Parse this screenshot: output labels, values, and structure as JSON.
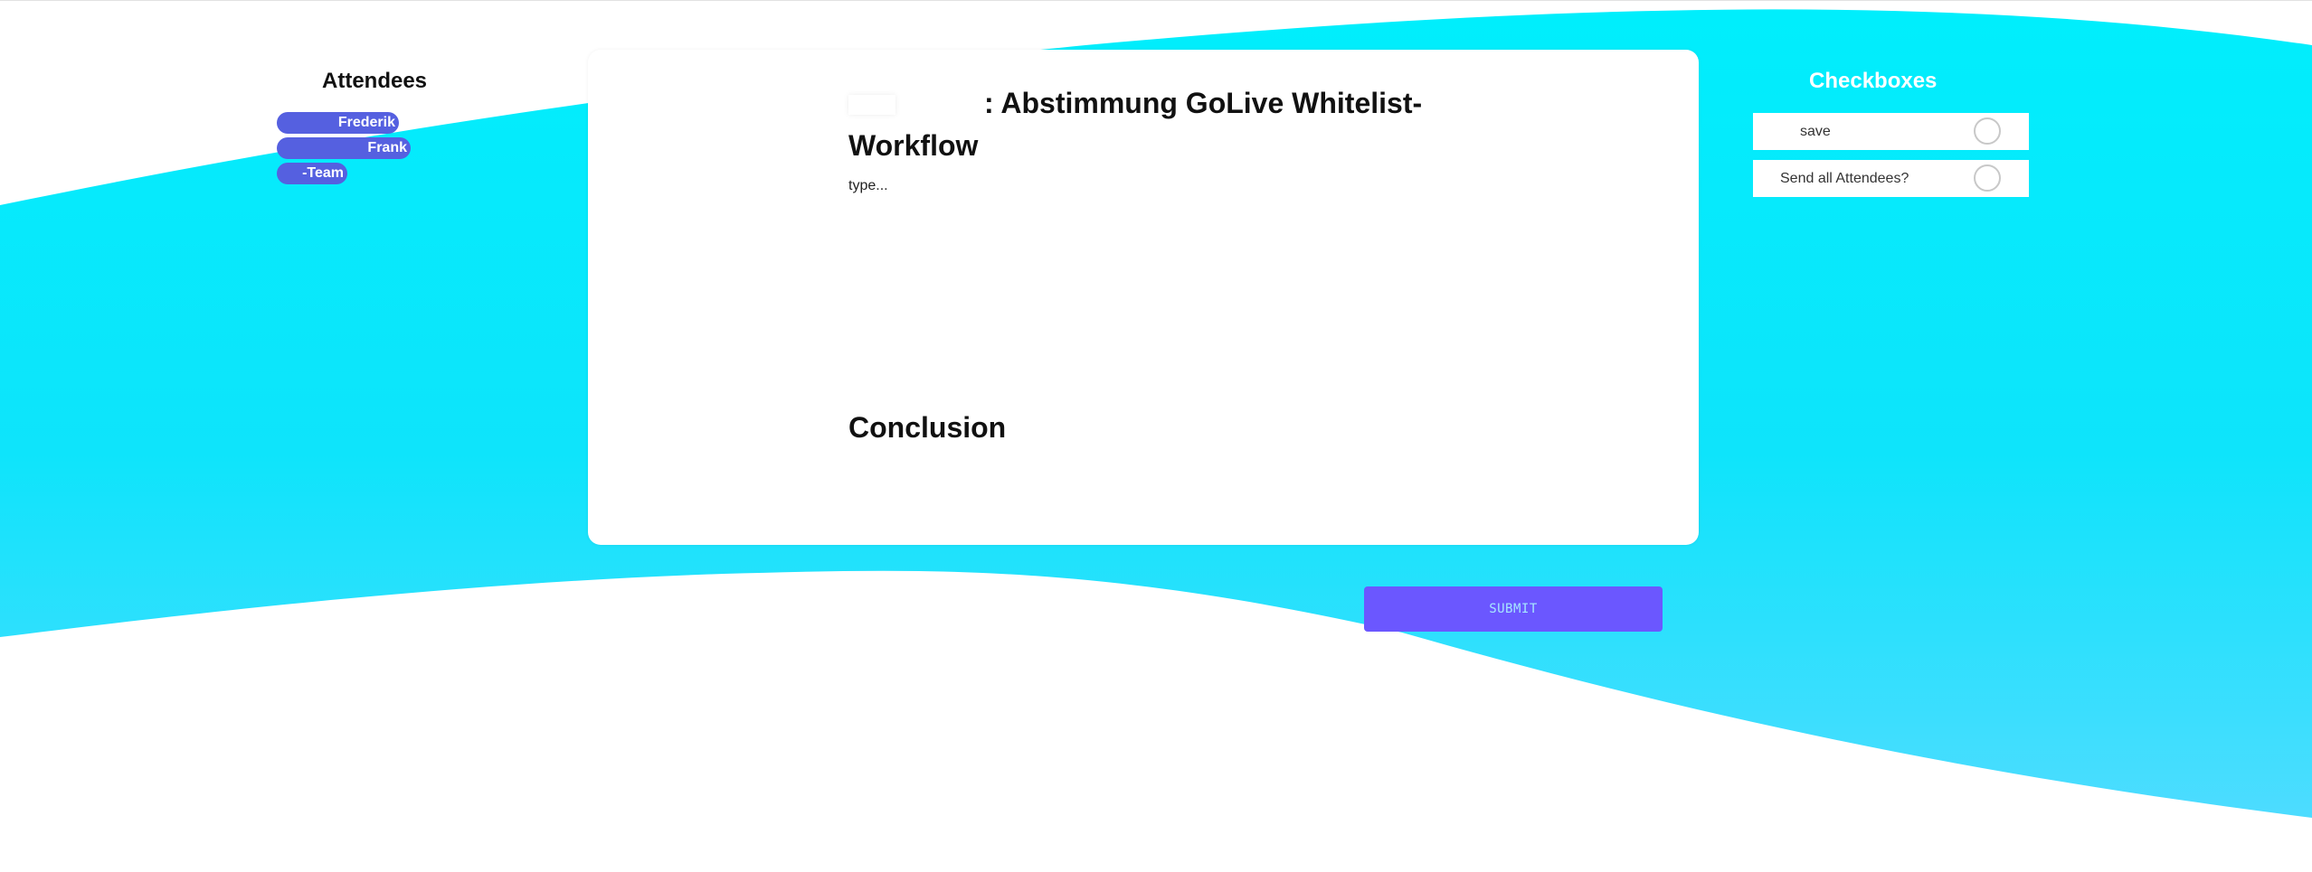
{
  "colors": {
    "wave_top": "#00eefc",
    "wave_bottom": "#4ddcff",
    "chip": "#5560e0",
    "submit": "#6b57ff",
    "submit_text": "#a6e7ff"
  },
  "attendees": {
    "title": "Attendees",
    "items": [
      {
        "label": "Frederik"
      },
      {
        "label": "Frank"
      },
      {
        "label": "-Team"
      }
    ]
  },
  "meeting": {
    "title": ": Abstimmung GoLive Whitelist-Workflow",
    "notes_placeholder": "type...",
    "conclusion_title": "Conclusion"
  },
  "checkboxes": {
    "title": "Checkboxes",
    "items": [
      {
        "label": "save"
      },
      {
        "label": "Send all Attendees?"
      }
    ]
  },
  "actions": {
    "submit_label": "SUBMIT"
  }
}
